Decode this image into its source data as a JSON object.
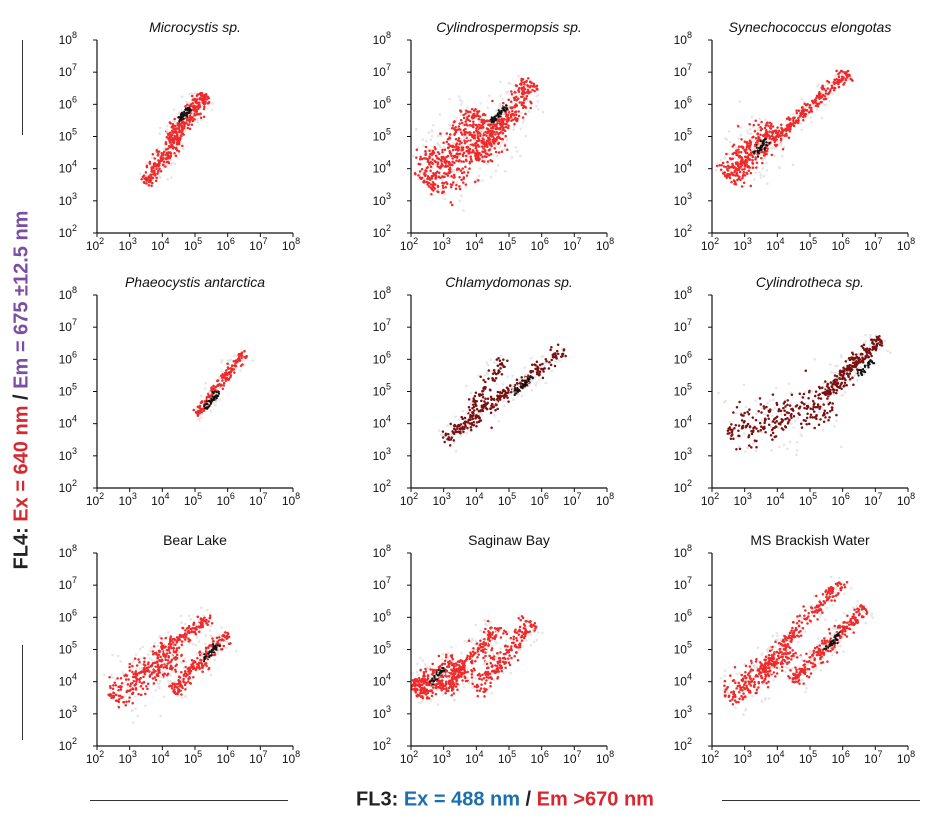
{
  "figure": {
    "y_axis_title": {
      "segments": [
        {
          "text": "FL4: ",
          "color": "#222222"
        },
        {
          "text": "Ex = 640 nm",
          "color": "#d7282f"
        },
        {
          "text": " / ",
          "color": "#222222"
        },
        {
          "text": "Em = 675 ±12.5 nm",
          "color": "#7b4ea3"
        }
      ]
    },
    "x_axis_title": {
      "segments": [
        {
          "text": "FL3: ",
          "color": "#222222"
        },
        {
          "text": "Ex = 488 nm",
          "color": "#1a6fb0"
        },
        {
          "text": " / ",
          "color": "#222222"
        },
        {
          "text": "Em >670 nm",
          "color": "#d7282f"
        }
      ]
    },
    "colors": {
      "dense": "#ee2a2a",
      "core": "#111111",
      "dark": "#7a1010",
      "halo": "#e6e6e6"
    }
  },
  "chart_data": [
    {
      "type": "scatter",
      "title": "Microcystis sp.",
      "title_italic": true,
      "xscale": "log",
      "yscale": "log",
      "xlim": [
        100,
        100000000
      ],
      "ylim": [
        100,
        100000000
      ],
      "xticks": [
        "10",
        "10",
        "10",
        "10",
        "10",
        "10",
        "10"
      ],
      "tick_exponents": [
        2,
        3,
        4,
        5,
        6,
        7,
        8
      ],
      "clusters": [
        {
          "x_from": 20000,
          "y_from": 100000,
          "x_to": 200000,
          "y_to": 2000000,
          "spread": 0.12,
          "count": 240,
          "tone": "dense"
        },
        {
          "x_from": 3000,
          "y_from": 3500,
          "x_to": 30000,
          "y_to": 90000,
          "spread": 0.12,
          "count": 170,
          "tone": "dense"
        },
        {
          "x_from": 30000,
          "y_from": 300000,
          "x_to": 70000,
          "y_to": 700000,
          "spread": 0.05,
          "count": 45,
          "tone": "core"
        }
      ]
    },
    {
      "type": "scatter",
      "title": "Cylindrospermopsis sp.",
      "title_italic": true,
      "xscale": "log",
      "yscale": "log",
      "xlim": [
        100,
        100000000
      ],
      "ylim": [
        100,
        100000000
      ],
      "xticks": [
        "10",
        "10",
        "10",
        "10",
        "10",
        "10",
        "10"
      ],
      "tick_exponents": [
        2,
        3,
        4,
        5,
        6,
        7,
        8
      ],
      "clusters": [
        {
          "x_from": 300,
          "y_from": 3000,
          "x_to": 20000,
          "y_to": 400000,
          "spread": 0.35,
          "count": 480,
          "tone": "dense"
        },
        {
          "x_from": 10000,
          "y_from": 20000,
          "x_to": 500000,
          "y_to": 5000000,
          "spread": 0.18,
          "count": 330,
          "tone": "dense"
        },
        {
          "x_from": 30000,
          "y_from": 300000,
          "x_to": 80000,
          "y_to": 800000,
          "spread": 0.05,
          "count": 45,
          "tone": "core"
        }
      ]
    },
    {
      "type": "scatter",
      "title": "Synechococcus elongotas",
      "title_italic": true,
      "xscale": "log",
      "yscale": "log",
      "xlim": [
        100,
        100000000
      ],
      "ylim": [
        100,
        100000000
      ],
      "xticks": [
        "10",
        "10",
        "10",
        "10",
        "10",
        "10",
        "10"
      ],
      "tick_exponents": [
        2,
        3,
        4,
        5,
        6,
        7,
        8
      ],
      "clusters": [
        {
          "x_from": 300,
          "y_from": 5000,
          "x_to": 8000,
          "y_to": 200000,
          "spread": 0.22,
          "count": 320,
          "tone": "dense"
        },
        {
          "x_from": 8000,
          "y_from": 80000,
          "x_to": 1500000,
          "y_to": 10000000,
          "spread": 0.1,
          "count": 220,
          "tone": "dense"
        },
        {
          "x_from": 2000,
          "y_from": 30000,
          "x_to": 5000,
          "y_to": 70000,
          "spread": 0.06,
          "count": 40,
          "tone": "core"
        }
      ]
    },
    {
      "type": "scatter",
      "title": "Phaeocystis antarctica",
      "title_italic": true,
      "xscale": "log",
      "yscale": "log",
      "xlim": [
        100,
        100000000
      ],
      "ylim": [
        100,
        100000000
      ],
      "xticks": [
        "10",
        "10",
        "10",
        "10",
        "10",
        "10",
        "10"
      ],
      "tick_exponents": [
        2,
        3,
        4,
        5,
        6,
        7,
        8
      ],
      "clusters": [
        {
          "x_from": 100000,
          "y_from": 15000,
          "x_to": 3000000,
          "y_to": 1500000,
          "spread": 0.08,
          "count": 170,
          "tone": "dense"
        },
        {
          "x_from": 200000,
          "y_from": 30000,
          "x_to": 500000,
          "y_to": 100000,
          "spread": 0.05,
          "count": 40,
          "tone": "core"
        }
      ]
    },
    {
      "type": "scatter",
      "title": "Chlamydomonas sp.",
      "title_italic": true,
      "xscale": "log",
      "yscale": "log",
      "xlim": [
        100,
        100000000
      ],
      "ylim": [
        100,
        100000000
      ],
      "xticks": [
        "10",
        "10",
        "10",
        "10",
        "10",
        "10",
        "10"
      ],
      "tick_exponents": [
        2,
        3,
        4,
        5,
        6,
        7,
        8
      ],
      "clusters": [
        {
          "x_from": 1000,
          "y_from": 3000,
          "x_to": 5000000,
          "y_to": 2000000,
          "spread": 0.12,
          "count": 260,
          "tone": "dark"
        },
        {
          "x_from": 5000,
          "y_from": 20000,
          "x_to": 80000,
          "y_to": 1000000,
          "spread": 0.1,
          "count": 70,
          "tone": "dark"
        },
        {
          "x_from": 150000,
          "y_from": 100000,
          "x_to": 500000,
          "y_to": 300000,
          "spread": 0.05,
          "count": 35,
          "tone": "core"
        }
      ]
    },
    {
      "type": "scatter",
      "title": "Cylindrotheca sp.",
      "title_italic": true,
      "xscale": "log",
      "yscale": "log",
      "xlim": [
        100,
        100000000
      ],
      "ylim": [
        100,
        100000000
      ],
      "xticks": [
        "10",
        "10",
        "10",
        "10",
        "10",
        "10",
        "10"
      ],
      "tick_exponents": [
        2,
        3,
        4,
        5,
        6,
        7,
        8
      ],
      "clusters": [
        {
          "x_from": 300,
          "y_from": 5000,
          "x_to": 500000,
          "y_to": 50000,
          "spread": 0.3,
          "count": 230,
          "tone": "dark"
        },
        {
          "x_from": 300000,
          "y_from": 80000,
          "x_to": 15000000,
          "y_to": 5000000,
          "spread": 0.12,
          "count": 220,
          "tone": "dark"
        },
        {
          "x_from": 3000000,
          "y_from": 300000,
          "x_to": 8000000,
          "y_to": 1000000,
          "spread": 0.05,
          "count": 30,
          "tone": "core"
        }
      ]
    },
    {
      "type": "scatter",
      "title": "Bear Lake",
      "title_italic": false,
      "xscale": "log",
      "yscale": "log",
      "xlim": [
        100,
        100000000
      ],
      "ylim": [
        100,
        100000000
      ],
      "xticks": [
        "10",
        "10",
        "10",
        "10",
        "10",
        "10",
        "10"
      ],
      "tick_exponents": [
        2,
        3,
        4,
        5,
        6,
        7,
        8
      ],
      "clusters": [
        {
          "x_from": 300,
          "y_from": 3000,
          "x_to": 30000,
          "y_to": 100000,
          "spread": 0.25,
          "count": 260,
          "tone": "dense"
        },
        {
          "x_from": 10000,
          "y_from": 100000,
          "x_to": 300000,
          "y_to": 1000000,
          "spread": 0.1,
          "count": 120,
          "tone": "dense"
        },
        {
          "x_from": 20000,
          "y_from": 5000,
          "x_to": 1000000,
          "y_to": 300000,
          "spread": 0.12,
          "count": 200,
          "tone": "dense"
        },
        {
          "x_from": 200000,
          "y_from": 50000,
          "x_to": 500000,
          "y_to": 150000,
          "spread": 0.05,
          "count": 35,
          "tone": "core"
        }
      ]
    },
    {
      "type": "scatter",
      "title": "Saginaw Bay",
      "title_italic": false,
      "xscale": "log",
      "yscale": "log",
      "xlim": [
        100,
        100000000
      ],
      "ylim": [
        100,
        100000000
      ],
      "xticks": [
        "10",
        "10",
        "10",
        "10",
        "10",
        "10",
        "10"
      ],
      "tick_exponents": [
        2,
        3,
        4,
        5,
        6,
        7,
        8
      ],
      "clusters": [
        {
          "x_from": 120,
          "y_from": 5000,
          "x_to": 3000,
          "y_to": 30000,
          "spread": 0.2,
          "count": 260,
          "tone": "dense"
        },
        {
          "x_from": 1000,
          "y_from": 5000,
          "x_to": 50000,
          "y_to": 500000,
          "spread": 0.15,
          "count": 210,
          "tone": "dense"
        },
        {
          "x_from": 10000,
          "y_from": 5000,
          "x_to": 500000,
          "y_to": 700000,
          "spread": 0.15,
          "count": 190,
          "tone": "dense"
        },
        {
          "x_from": 400,
          "y_from": 10000,
          "x_to": 1000,
          "y_to": 25000,
          "spread": 0.05,
          "count": 30,
          "tone": "core"
        }
      ]
    },
    {
      "type": "scatter",
      "title": "MS Brackish Water",
      "title_italic": false,
      "xscale": "log",
      "yscale": "log",
      "xlim": [
        100,
        100000000
      ],
      "ylim": [
        100,
        100000000
      ],
      "xticks": [
        "10",
        "10",
        "10",
        "10",
        "10",
        "10",
        "10"
      ],
      "tick_exponents": [
        2,
        3,
        4,
        5,
        6,
        7,
        8
      ],
      "clusters": [
        {
          "x_from": 300,
          "y_from": 3000,
          "x_to": 30000,
          "y_to": 100000,
          "spread": 0.2,
          "count": 220,
          "tone": "dense"
        },
        {
          "x_from": 3000,
          "y_from": 20000,
          "x_to": 1000000,
          "y_to": 15000000,
          "spread": 0.12,
          "count": 200,
          "tone": "dense"
        },
        {
          "x_from": 30000,
          "y_from": 10000,
          "x_to": 5000000,
          "y_to": 2000000,
          "spread": 0.12,
          "count": 230,
          "tone": "dense"
        },
        {
          "x_from": 300000,
          "y_from": 100000,
          "x_to": 800000,
          "y_to": 300000,
          "spread": 0.05,
          "count": 30,
          "tone": "core"
        }
      ]
    }
  ]
}
